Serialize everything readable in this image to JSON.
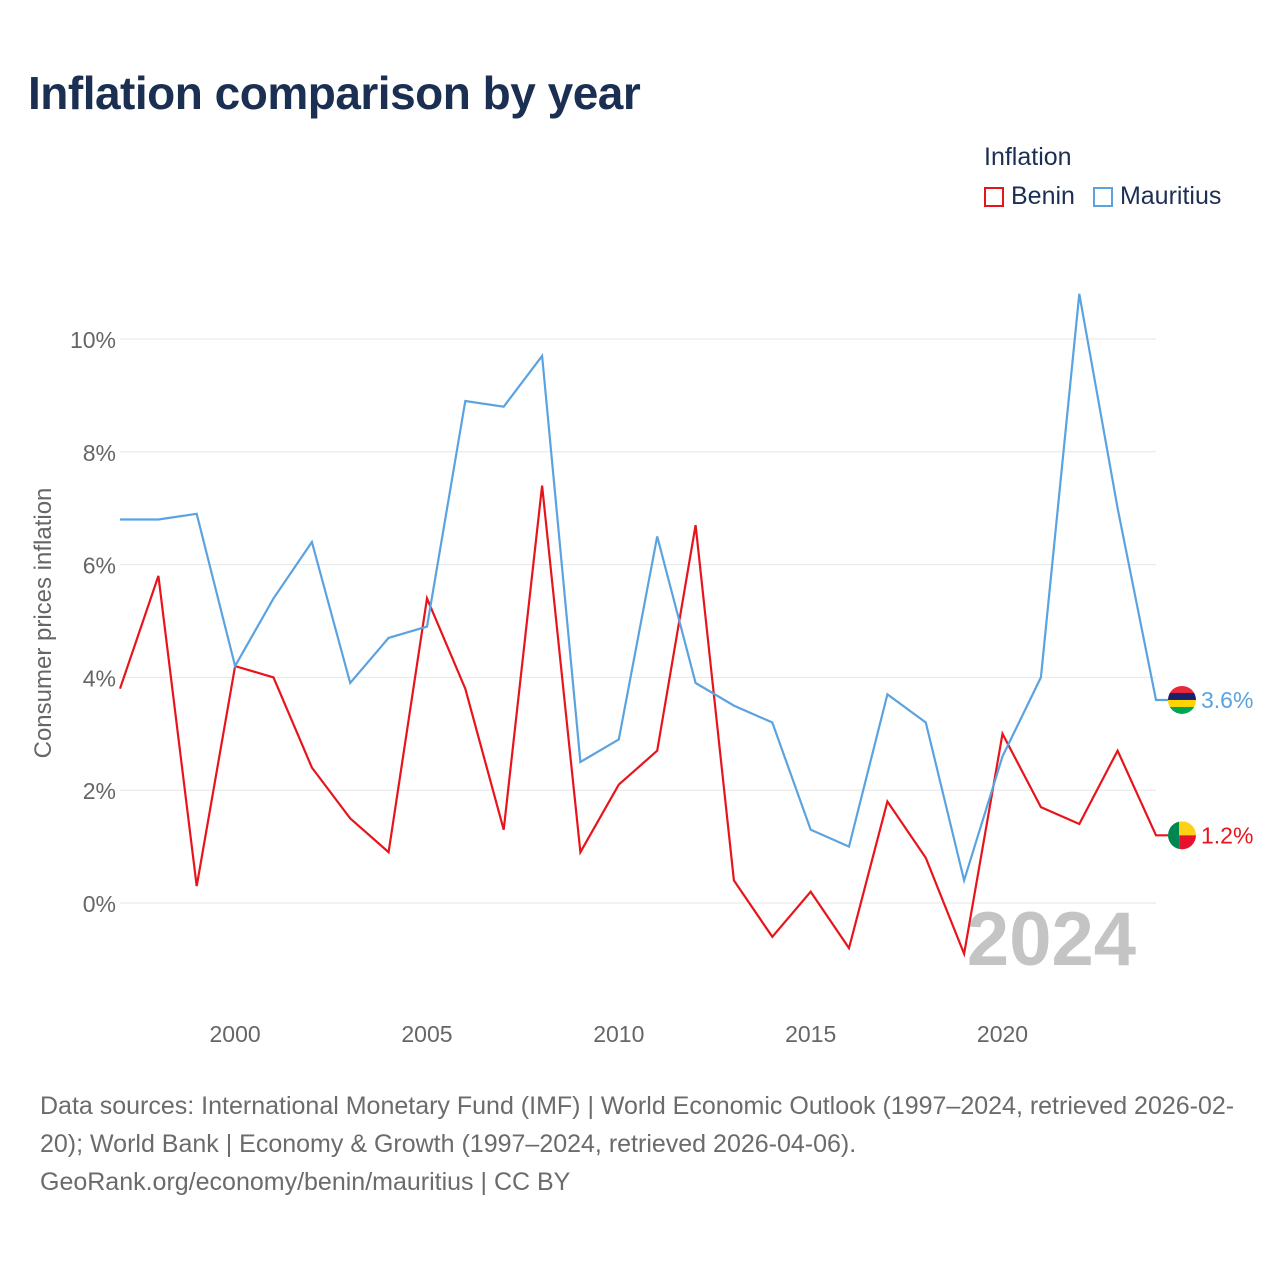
{
  "title": "Inflation comparison by year",
  "legend": {
    "title": "Inflation",
    "items": [
      {
        "label": "Benin",
        "color": "#e8141c"
      },
      {
        "label": "Mauritius",
        "color": "#5ba3e0"
      }
    ]
  },
  "footer": {
    "sources": "Data sources: International Monetary Fund (IMF) | World Economic Outlook (1997–2024, retrieved 2026-02-20); World Bank | Economy & Growth (1997–2024, retrieved 2026-04-06).",
    "credit": "GeoRank.org/economy/benin/mauritius | CC BY"
  },
  "chart_data": {
    "type": "line",
    "title": "Inflation comparison by year",
    "ylabel": "Consumer prices inflation",
    "xlabel": "",
    "xlim": [
      1997,
      2024
    ],
    "ylim": [
      -2,
      11
    ],
    "yticks": [
      0,
      2,
      4,
      6,
      8,
      10
    ],
    "ytick_labels": [
      "0%",
      "2%",
      "4%",
      "6%",
      "8%",
      "10%"
    ],
    "xticks": [
      2000,
      2005,
      2010,
      2015,
      2020
    ],
    "xtick_labels": [
      "2000",
      "2005",
      "2010",
      "2015",
      "2020"
    ],
    "year_watermark": "2024",
    "x": [
      1997,
      1998,
      1999,
      2000,
      2001,
      2002,
      2003,
      2004,
      2005,
      2006,
      2007,
      2008,
      2009,
      2010,
      2011,
      2012,
      2013,
      2014,
      2015,
      2016,
      2017,
      2018,
      2019,
      2020,
      2021,
      2022,
      2023,
      2024
    ],
    "series": [
      {
        "name": "Benin",
        "color": "#e8141c",
        "end_label": "1.2%",
        "flag": "benin",
        "values": [
          3.8,
          5.8,
          0.3,
          4.2,
          4.0,
          2.4,
          1.5,
          0.9,
          5.4,
          3.8,
          1.3,
          7.4,
          0.9,
          2.1,
          2.7,
          6.7,
          0.4,
          -0.6,
          0.2,
          -0.8,
          1.8,
          0.8,
          -0.9,
          3.0,
          1.7,
          1.4,
          2.7,
          1.2
        ]
      },
      {
        "name": "Mauritius",
        "color": "#5ba3e0",
        "end_label": "3.6%",
        "flag": "mauritius",
        "values": [
          6.8,
          6.8,
          6.9,
          4.2,
          5.4,
          6.4,
          3.9,
          4.7,
          4.9,
          8.9,
          8.8,
          9.7,
          2.5,
          2.9,
          6.5,
          3.9,
          3.5,
          3.2,
          1.3,
          1.0,
          3.7,
          3.2,
          0.4,
          2.6,
          4.0,
          10.8,
          7.0,
          3.6
        ]
      }
    ]
  }
}
